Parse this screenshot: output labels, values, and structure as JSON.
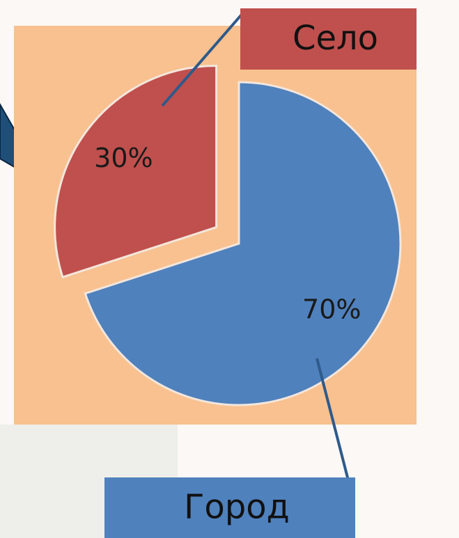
{
  "chart_data": {
    "type": "pie",
    "categories": [
      "Город",
      "Село"
    ],
    "values": [
      70,
      30
    ],
    "value_labels": [
      "70%",
      "30%"
    ],
    "colors": [
      "#4f81bd",
      "#c0504d"
    ]
  }
}
